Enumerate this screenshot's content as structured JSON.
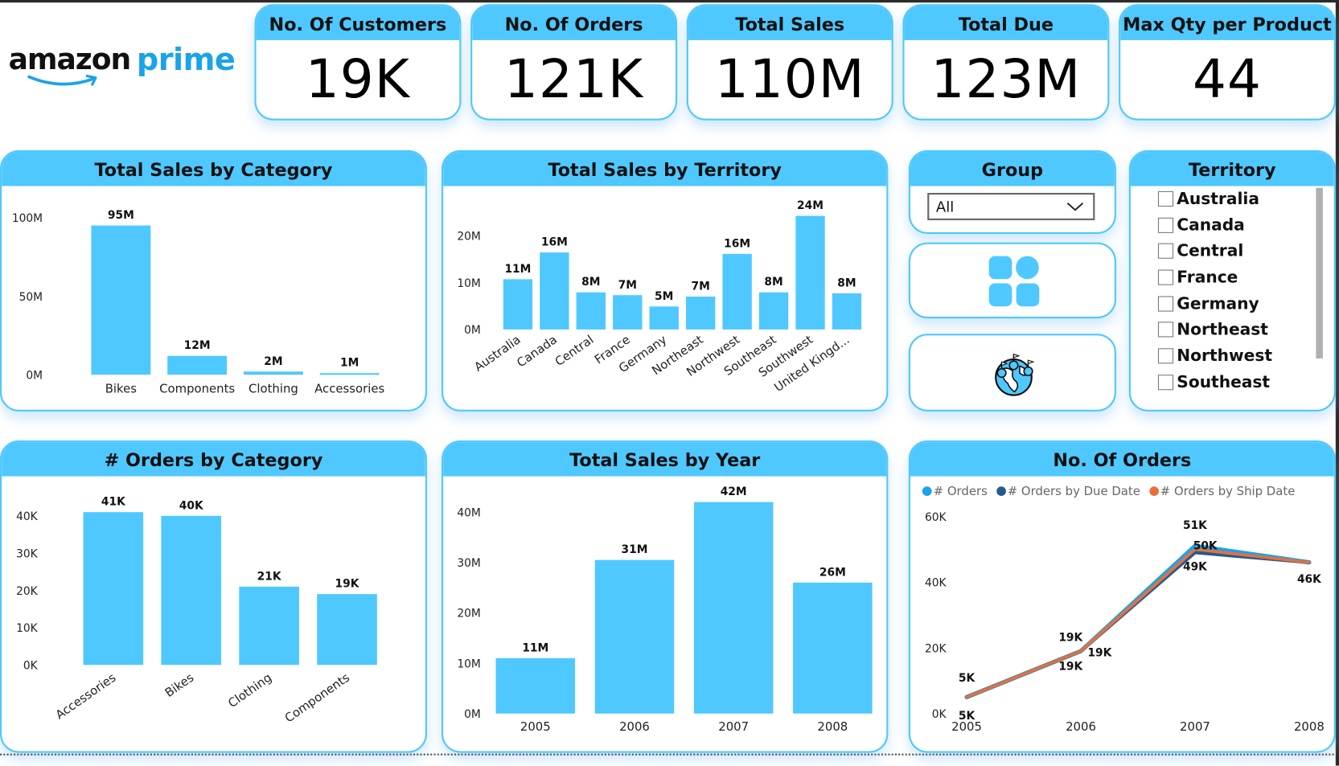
{
  "brand": {
    "name_left": "amazon",
    "name_right": "prime"
  },
  "colors": {
    "accent": "#4fc8ff",
    "bar": "#4fc8ff",
    "orders": "#1aa3e8",
    "due_date": "#245a8f",
    "ship_date": "#e8703a",
    "logo_blue": "#1aa3e8"
  },
  "kpis": [
    {
      "title": "No. Of Customers",
      "value": "19K"
    },
    {
      "title": "No. Of Orders",
      "value": "121K"
    },
    {
      "title": "Total Sales",
      "value": "110M"
    },
    {
      "title": "Total Due",
      "value": "123M"
    },
    {
      "title": "Max Qty per Product",
      "value": "44"
    }
  ],
  "group_slicer": {
    "title": "Group",
    "selected": "All",
    "icon": "chevron-down-icon"
  },
  "nav_buttons": [
    {
      "icon": "grid-icon",
      "label": "Overview"
    },
    {
      "icon": "globe-pins-icon",
      "label": "Map"
    }
  ],
  "territory_slicer": {
    "title": "Territory",
    "items": [
      "Australia",
      "Canada",
      "Central",
      "France",
      "Germany",
      "Northeast",
      "Northwest",
      "Southeast"
    ]
  },
  "chart_data": [
    {
      "id": "sales_by_category",
      "type": "bar",
      "title": "Total Sales by Category",
      "categories": [
        "Bikes",
        "Components",
        "Clothing",
        "Accessories"
      ],
      "values": [
        95,
        12,
        2,
        1
      ],
      "unit": "M",
      "data_labels": [
        "95M",
        "12M",
        "2M",
        "1M"
      ],
      "yticks": [
        "0M",
        "50M",
        "100M"
      ],
      "ytick_values": [
        0,
        50,
        100
      ],
      "ylim": [
        0,
        100
      ],
      "xlabel": "",
      "ylabel": "",
      "grid": false
    },
    {
      "id": "sales_by_territory",
      "type": "bar",
      "title": "Total Sales by Territory",
      "categories": [
        "Australia",
        "Canada",
        "Central",
        "France",
        "Germany",
        "Northeast",
        "Northwest",
        "Southeast",
        "Southwest",
        "United Kingd..."
      ],
      "values": [
        10.7,
        16.4,
        7.9,
        7.3,
        4.9,
        7.0,
        16.1,
        7.9,
        24.2,
        7.7
      ],
      "unit": "M",
      "data_labels": [
        "11M",
        "16M",
        "8M",
        "7M",
        "5M",
        "7M",
        "16M",
        "8M",
        "24M",
        "8M"
      ],
      "yticks": [
        "0M",
        "10M",
        "20M"
      ],
      "ytick_values": [
        0,
        10,
        20
      ],
      "ylim": [
        0,
        24
      ],
      "xlabel": "",
      "ylabel": "",
      "grid": false
    },
    {
      "id": "orders_by_category",
      "type": "bar",
      "title": "# Orders by Category",
      "categories": [
        "Accessories",
        "Bikes",
        "Clothing",
        "Components"
      ],
      "values": [
        41,
        40,
        21,
        19
      ],
      "unit": "K",
      "data_labels": [
        "41K",
        "40K",
        "21K",
        "19K"
      ],
      "yticks": [
        "0K",
        "10K",
        "20K",
        "30K",
        "40K"
      ],
      "ytick_values": [
        0,
        10,
        20,
        30,
        40
      ],
      "ylim": [
        0,
        41
      ],
      "xlabel": "",
      "ylabel": "",
      "grid": false
    },
    {
      "id": "sales_by_year",
      "type": "bar",
      "title": "Total Sales by Year",
      "categories": [
        "2005",
        "2006",
        "2007",
        "2008"
      ],
      "values": [
        11,
        30.5,
        42,
        26
      ],
      "unit": "M",
      "data_labels": [
        "11M",
        "31M",
        "42M",
        "26M"
      ],
      "yticks": [
        "0M",
        "10M",
        "20M",
        "30M",
        "40M"
      ],
      "ytick_values": [
        0,
        10,
        20,
        30,
        40
      ],
      "ylim": [
        0,
        40
      ],
      "xlabel": "",
      "ylabel": "",
      "grid": false
    },
    {
      "id": "no_of_orders",
      "type": "line",
      "title": "No. Of Orders",
      "x": [
        "2005",
        "2006",
        "2007",
        "2008"
      ],
      "series": [
        {
          "name": "# Orders",
          "values": [
            5,
            19,
            51,
            46
          ],
          "labels": [
            "5K",
            "19K",
            "51K",
            "46K"
          ]
        },
        {
          "name": "# Orders by Due Date",
          "values": [
            5,
            19,
            49,
            46
          ],
          "labels": [
            "5K",
            "19K",
            "49K",
            ""
          ]
        },
        {
          "name": "# Orders by Ship Date",
          "values": [
            5,
            19,
            50,
            46
          ],
          "labels": [
            "",
            "19K",
            "50K",
            ""
          ]
        }
      ],
      "unit": "K",
      "yticks": [
        "0K",
        "20K",
        "40K",
        "60K"
      ],
      "ytick_values": [
        0,
        20,
        40,
        60
      ],
      "ylim": [
        0,
        60
      ],
      "legend": "top-left",
      "xlabel": "",
      "ylabel": "",
      "grid": false
    }
  ]
}
